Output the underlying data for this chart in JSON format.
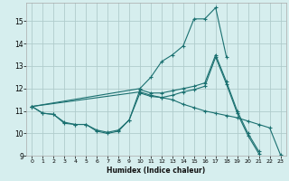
{
  "xlabel": "Humidex (Indice chaleur)",
  "bg_color": "#d6eeee",
  "grid_color": "#b0cccc",
  "line_color": "#1a7070",
  "xlim": [
    -0.5,
    23.5
  ],
  "ylim": [
    9,
    15.8
  ],
  "x_ticks": [
    0,
    1,
    2,
    3,
    4,
    5,
    6,
    7,
    8,
    9,
    10,
    11,
    12,
    13,
    14,
    15,
    16,
    17,
    18,
    19,
    20,
    21,
    22,
    23
  ],
  "y_ticks": [
    9,
    10,
    11,
    12,
    13,
    14,
    15
  ],
  "curve1_x": [
    0,
    1,
    2,
    3,
    4,
    5,
    6,
    7,
    8,
    9,
    10,
    11,
    12,
    13,
    14,
    15,
    16,
    17,
    18,
    19,
    20,
    21
  ],
  "curve1_y": [
    11.2,
    10.9,
    10.85,
    10.45,
    10.4,
    10.4,
    10.1,
    10.0,
    10.1,
    10.6,
    11.8,
    11.65,
    11.6,
    11.7,
    11.85,
    11.95,
    12.1,
    13.4,
    12.2,
    10.9,
    9.9,
    9.1
  ],
  "curve2_x": [
    0,
    1,
    2,
    3,
    4,
    5,
    6,
    7,
    8,
    9,
    10,
    11,
    12,
    13,
    14,
    15,
    16,
    17,
    18,
    19,
    20,
    21
  ],
  "curve2_y": [
    11.2,
    10.9,
    10.85,
    10.5,
    10.4,
    10.4,
    10.15,
    10.05,
    10.15,
    10.6,
    11.95,
    11.8,
    11.8,
    11.9,
    12.0,
    12.1,
    12.25,
    13.5,
    12.3,
    11.0,
    10.0,
    9.2
  ],
  "curve3_x": [
    0,
    10,
    11,
    12,
    13,
    14,
    15,
    16,
    17,
    18
  ],
  "curve3_y": [
    11.2,
    12.0,
    12.5,
    13.2,
    13.5,
    13.9,
    15.1,
    15.1,
    15.6,
    13.4
  ],
  "curve4_x": [
    0,
    10,
    11,
    12,
    13,
    14,
    15,
    16,
    17,
    18,
    19,
    20,
    21,
    22,
    23
  ],
  "curve4_y": [
    11.2,
    11.85,
    11.7,
    11.6,
    11.5,
    11.3,
    11.15,
    11.0,
    10.9,
    10.8,
    10.7,
    10.55,
    10.4,
    10.25,
    9.05
  ]
}
